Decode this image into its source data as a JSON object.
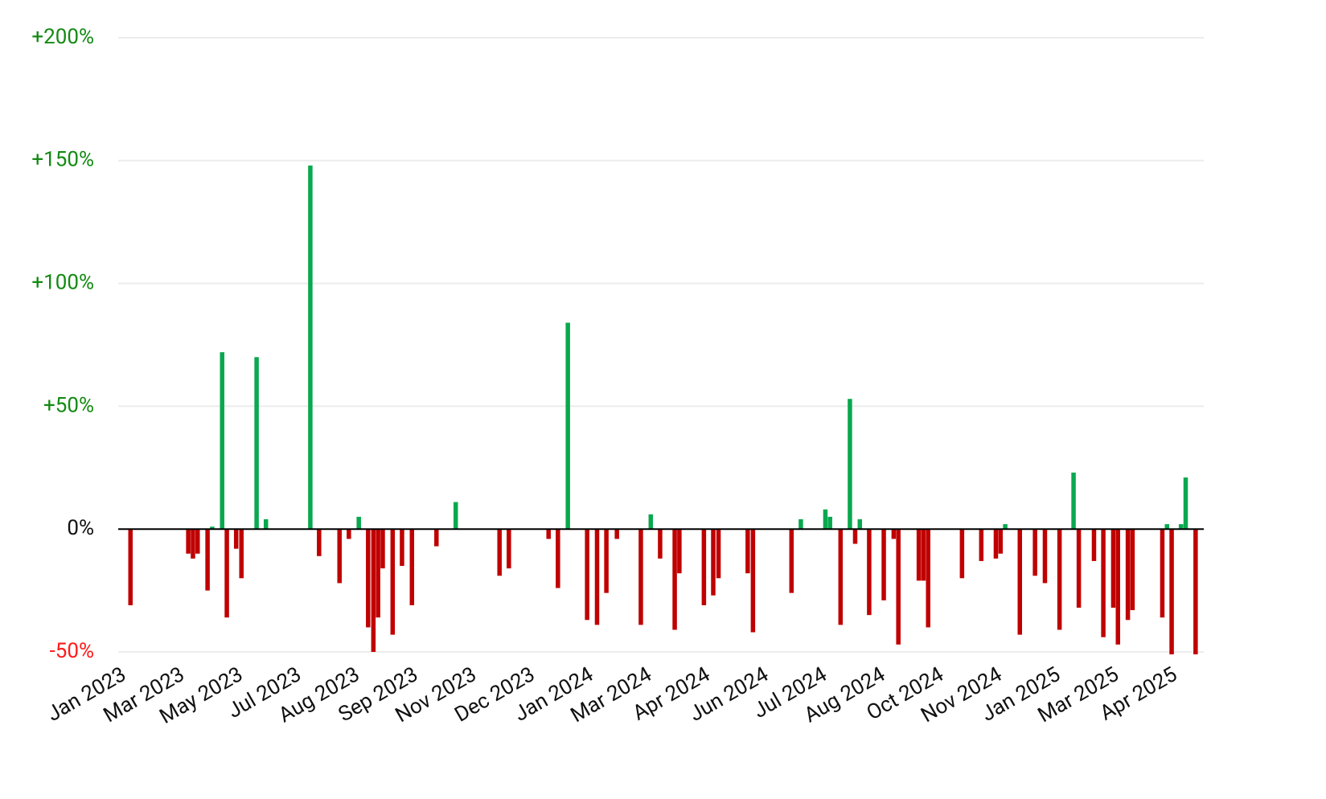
{
  "chart_data": {
    "type": "bar",
    "x": [
      0.1,
      1.09,
      1.17,
      1.25,
      1.42,
      1.5,
      1.67,
      1.75,
      1.91,
      2.0,
      2.26,
      2.42,
      3.18,
      3.33,
      3.68,
      3.84,
      4.01,
      4.17,
      4.26,
      4.34,
      4.42,
      4.59,
      4.75,
      4.92,
      5.34,
      5.67,
      6.42,
      6.58,
      7.26,
      7.42,
      7.59,
      7.92,
      8.09,
      8.25,
      8.43,
      8.84,
      9.01,
      9.17,
      9.42,
      9.5,
      9.92,
      10.08,
      10.17,
      10.67,
      10.76,
      11.42,
      11.58,
      12.0,
      12.08,
      12.26,
      12.42,
      12.51,
      12.59,
      12.75,
      13.0,
      13.17,
      13.25,
      13.6,
      13.68,
      13.76,
      14.34,
      14.67,
      14.92,
      15.0,
      15.08,
      15.33,
      15.59,
      15.76,
      16.01,
      16.25,
      16.34,
      16.6,
      16.76,
      16.93,
      17.01,
      17.18,
      17.26,
      17.77,
      17.85,
      17.93,
      18.09,
      18.17,
      18.34
    ],
    "values": [
      -31,
      -10,
      -12,
      -10,
      -25,
      1,
      72,
      -36,
      -8,
      -20,
      70,
      4,
      148,
      -11,
      -22,
      -4,
      5,
      -40,
      -50,
      -36,
      -16,
      -43,
      -15,
      -31,
      -7,
      11,
      -19,
      -16,
      -4,
      -24,
      84,
      -37,
      -39,
      -26,
      -4,
      -39,
      6,
      -12,
      -41,
      -18,
      -31,
      -27,
      -20,
      -18,
      -42,
      -26,
      4,
      8,
      5,
      -39,
      53,
      -6,
      4,
      -35,
      -29,
      -4,
      -47,
      -21,
      -21,
      -40,
      -20,
      -13,
      -12,
      -10,
      2,
      -43,
      -19,
      -22,
      -41,
      23,
      -32,
      -13,
      -44,
      -32,
      -47,
      -37,
      -33,
      -36,
      2,
      -51,
      2,
      21,
      -51
    ],
    "positive_color": "#0aa84f",
    "negative_color": "#c00000",
    "xlim": [
      -0.11,
      18.48
    ],
    "xticks": [
      {
        "value": 0,
        "label": "Jan 2023"
      },
      {
        "value": 1,
        "label": "Mar 2023"
      },
      {
        "value": 2,
        "label": "May 2023"
      },
      {
        "value": 3,
        "label": "Jul 2023"
      },
      {
        "value": 4,
        "label": "Aug 2023"
      },
      {
        "value": 5,
        "label": "Sep 2023"
      },
      {
        "value": 6,
        "label": "Nov 2023"
      },
      {
        "value": 7,
        "label": "Dec 2023"
      },
      {
        "value": 8,
        "label": "Jan 2024"
      },
      {
        "value": 9,
        "label": "Mar 2024"
      },
      {
        "value": 10,
        "label": "Apr 2024"
      },
      {
        "value": 11,
        "label": "Jun 2024"
      },
      {
        "value": 12,
        "label": "Jul 2024"
      },
      {
        "value": 13,
        "label": "Aug 2024"
      },
      {
        "value": 14,
        "label": "Oct 2024"
      },
      {
        "value": 15,
        "label": "Nov 2024"
      },
      {
        "value": 16,
        "label": "Jan 2025"
      },
      {
        "value": 17,
        "label": "Mar 2025"
      },
      {
        "value": 18,
        "label": "Apr 2025"
      }
    ],
    "ylim": [
      -50,
      200
    ],
    "yticks": [
      {
        "value": 200,
        "label": "+200%"
      },
      {
        "value": 150,
        "label": "+150%"
      },
      {
        "value": 100,
        "label": "+100%"
      },
      {
        "value": 50,
        "label": "+50%"
      },
      {
        "value": 0,
        "label": "0%"
      },
      {
        "value": -50,
        "label": "-50%"
      }
    ],
    "grid": true
  }
}
